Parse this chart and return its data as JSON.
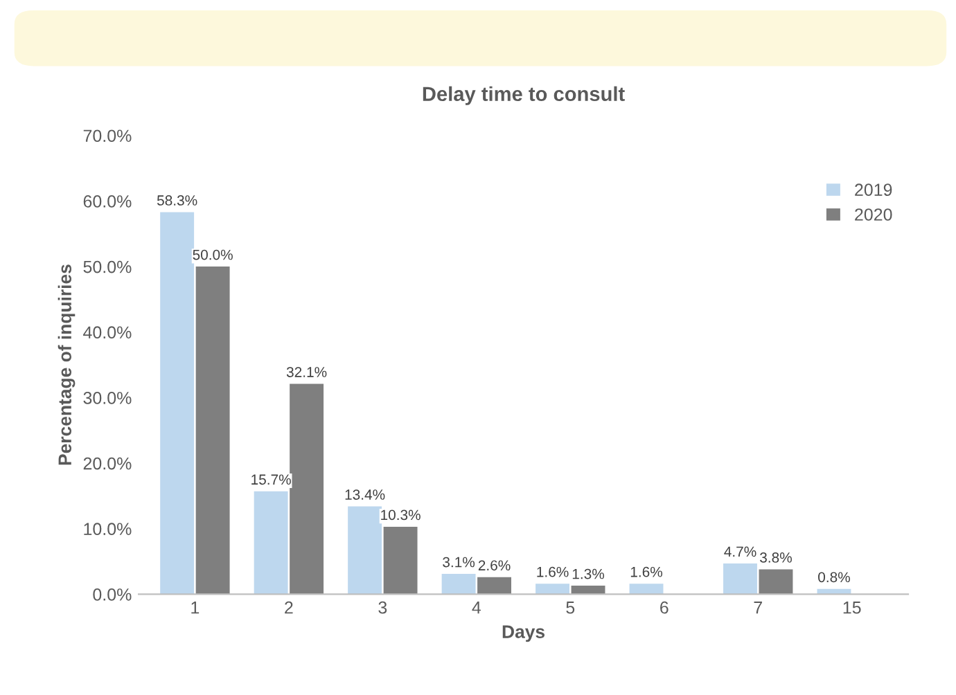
{
  "chart_data": {
    "type": "bar",
    "title": "Delay time to consult",
    "xlabel": "Days",
    "ylabel": "Percentage of inquiries",
    "categories": [
      "1",
      "2",
      "3",
      "4",
      "5",
      "6",
      "7",
      "15"
    ],
    "series": [
      {
        "name": "2019",
        "color": "#bdd7ee",
        "values": [
          58.3,
          15.7,
          13.4,
          3.1,
          1.6,
          1.6,
          4.7,
          0.8
        ],
        "value_labels": [
          "58.3%",
          "15.7%",
          "13.4%",
          "3.1%",
          "1.6%",
          "1.6%",
          "4.7%",
          "0.8%"
        ]
      },
      {
        "name": "2020",
        "color": "#7f7f7f",
        "values": [
          50.0,
          32.1,
          10.3,
          2.6,
          1.3,
          null,
          3.8,
          null
        ],
        "value_labels": [
          "50.0%",
          "32.1%",
          "10.3%",
          "2.6%",
          "1.3%",
          null,
          "3.8%",
          null
        ]
      }
    ],
    "ylim": [
      0,
      70
    ],
    "yticks": [
      {
        "value": 0,
        "label": "0.0%"
      },
      {
        "value": 10,
        "label": "10.0%"
      },
      {
        "value": 20,
        "label": "20.0%"
      },
      {
        "value": 30,
        "label": "30.0%"
      },
      {
        "value": 40,
        "label": "40.0%"
      },
      {
        "value": 50,
        "label": "50.0%"
      },
      {
        "value": 60,
        "label": "60.0%"
      },
      {
        "value": 70,
        "label": "70.0%"
      }
    ],
    "grid": false,
    "legend": "top right"
  }
}
